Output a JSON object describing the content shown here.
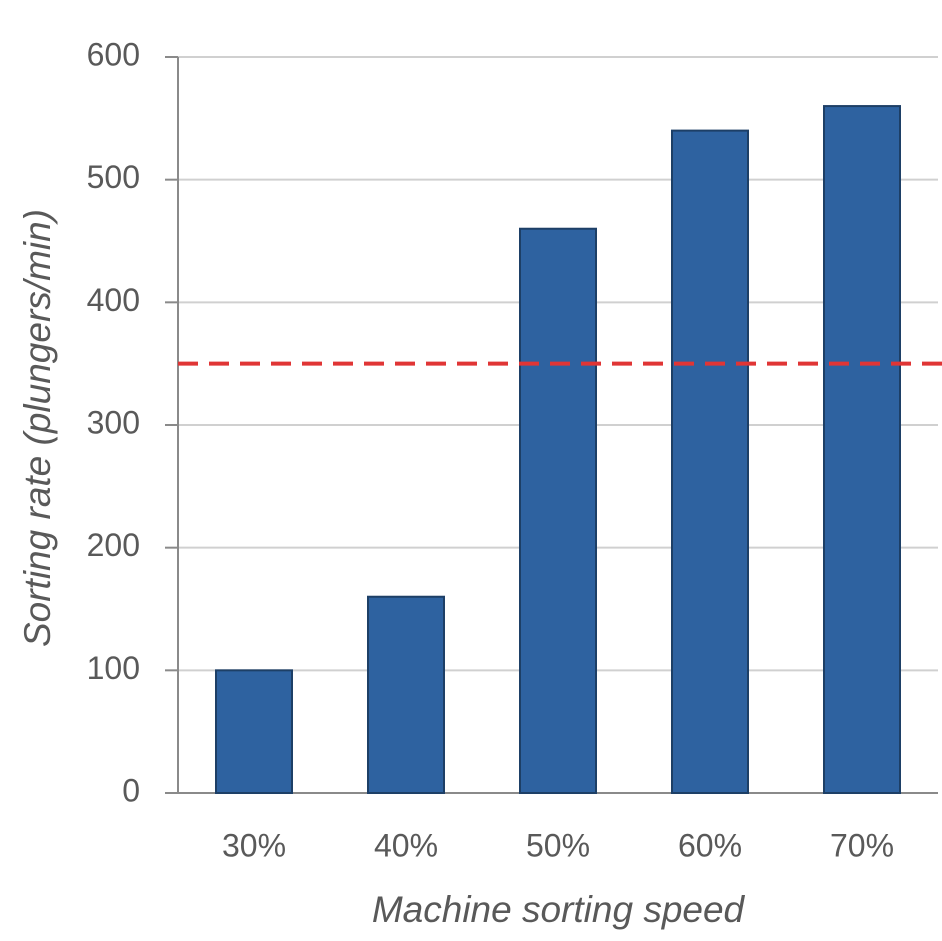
{
  "chart_data": {
    "type": "bar",
    "x_label": "Machine sorting speed",
    "y_label": "Sorting rate (plungers/min)",
    "categories": [
      "30%",
      "40%",
      "50%",
      "60%",
      "70%"
    ],
    "values": [
      100,
      160,
      460,
      540,
      560
    ],
    "color": "#2e62a0",
    "ylim": [
      0,
      600
    ],
    "yticks": [
      0,
      100,
      200,
      300,
      400,
      500,
      600
    ],
    "grid": true,
    "reference_line": {
      "value": 350,
      "color": "#e03535"
    }
  }
}
